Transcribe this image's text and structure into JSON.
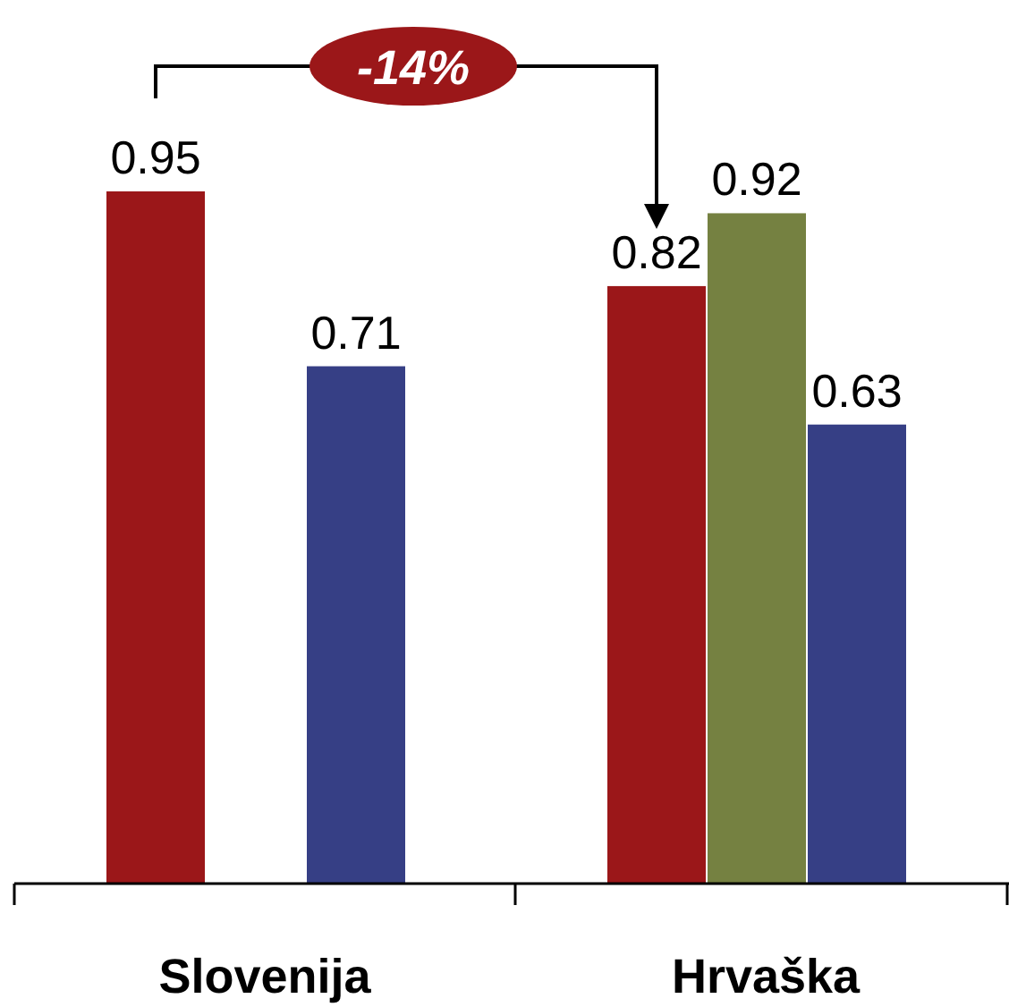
{
  "chart_data": {
    "type": "bar",
    "categories": [
      "Slovenija",
      "Hrvaška"
    ],
    "series": [
      {
        "color": "#9b1719",
        "values": [
          0.95,
          0.82
        ]
      },
      {
        "color": "#758141",
        "values": [
          null,
          0.92
        ]
      },
      {
        "color": "#363f85",
        "values": [
          0.71,
          0.63
        ]
      }
    ],
    "data_labels": true,
    "annotations": [
      "-14%"
    ]
  }
}
